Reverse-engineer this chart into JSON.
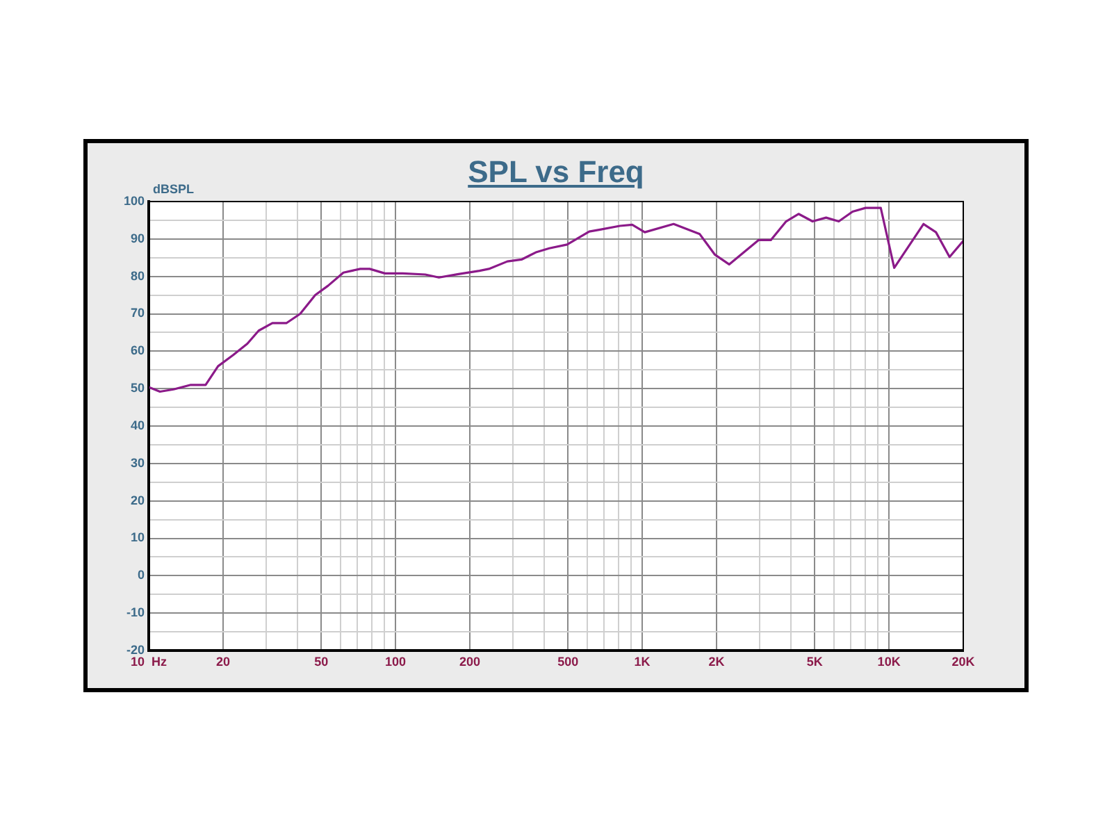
{
  "chart_data": {
    "type": "line",
    "title": "SPL vs Freq",
    "ylabel": "dBSPL",
    "log": "x",
    "grid": true,
    "legend": false,
    "marker": "none",
    "line_style": "solid",
    "x": [
      10,
      11.1,
      12.6,
      14.8,
      17,
      19.1,
      22,
      25.1,
      27.9,
      31.7,
      36.1,
      41.1,
      47.3,
      53.3,
      61.5,
      72,
      78.6,
      90.6,
      107,
      132,
      150,
      180,
      219,
      239,
      284,
      324,
      373,
      420,
      496,
      610,
      675,
      812,
      911,
      1024,
      1340,
      1710,
      1970,
      2250,
      2960,
      3320,
      3830,
      4300,
      4900,
      5560,
      6260,
      7120,
      8040,
      9260,
      10500,
      13800,
      15500,
      17600,
      20000
    ],
    "series": [
      {
        "color": "#8b1a89",
        "values": [
          50.4,
          49.2,
          49.8,
          51,
          51,
          56,
          59,
          62,
          65.5,
          67.5,
          67.5,
          70,
          75,
          77.5,
          81,
          82,
          82,
          80.8,
          80.8,
          80.5,
          79.7,
          80.6,
          81.5,
          82,
          84,
          84.5,
          86.5,
          87.5,
          88.5,
          92,
          92.5,
          93.5,
          93.8,
          91.8,
          94,
          91.3,
          85.8,
          83.2,
          89.7,
          89.7,
          94.7,
          96.7,
          94.7,
          95.7,
          94.7,
          97.3,
          98.3,
          98.3,
          82.3,
          94,
          91.8,
          85.2,
          89.5
        ]
      }
    ],
    "xlim": [
      10,
      20000
    ],
    "xticks": [
      {
        "value": 10,
        "label": "10  Hz"
      },
      20,
      {
        "value": 30,
        "label": null
      },
      {
        "value": 40,
        "label": null
      },
      50,
      {
        "value": 60,
        "label": null
      },
      {
        "value": 70,
        "label": null
      },
      {
        "value": 80,
        "label": null
      },
      {
        "value": 90,
        "label": null
      },
      100,
      200,
      {
        "value": 300,
        "label": null
      },
      {
        "value": 400,
        "label": null
      },
      500,
      {
        "value": 600,
        "label": null
      },
      {
        "value": 700,
        "label": null
      },
      {
        "value": 800,
        "label": null
      },
      {
        "value": 900,
        "label": null
      },
      {
        "value": 1000,
        "label": "1K"
      },
      {
        "value": 2000,
        "label": "2K"
      },
      {
        "value": 3000,
        "label": null
      },
      {
        "value": 4000,
        "label": null
      },
      {
        "value": 5000,
        "label": "5K"
      },
      {
        "value": 6000,
        "label": null
      },
      {
        "value": 7000,
        "label": null
      },
      {
        "value": 8000,
        "label": null
      },
      {
        "value": 9000,
        "label": null
      },
      {
        "value": 10000,
        "label": "10K"
      },
      {
        "value": 20000,
        "label": "20K"
      }
    ],
    "ylim": [
      -20,
      100
    ],
    "yticks": [
      -20,
      {
        "value": -15,
        "label": null
      },
      -10,
      {
        "value": -5,
        "label": null
      },
      0,
      {
        "value": 5,
        "label": null
      },
      10,
      {
        "value": 15,
        "label": null
      },
      20,
      {
        "value": 25,
        "label": null
      },
      30,
      {
        "value": 35,
        "label": null
      },
      40,
      {
        "value": 45,
        "label": null
      },
      50,
      {
        "value": 55,
        "label": null
      },
      60,
      {
        "value": 65,
        "label": null
      },
      70,
      {
        "value": 75,
        "label": null
      },
      80,
      {
        "value": 85,
        "label": null
      },
      90,
      {
        "value": 95,
        "label": null
      },
      100
    ]
  }
}
